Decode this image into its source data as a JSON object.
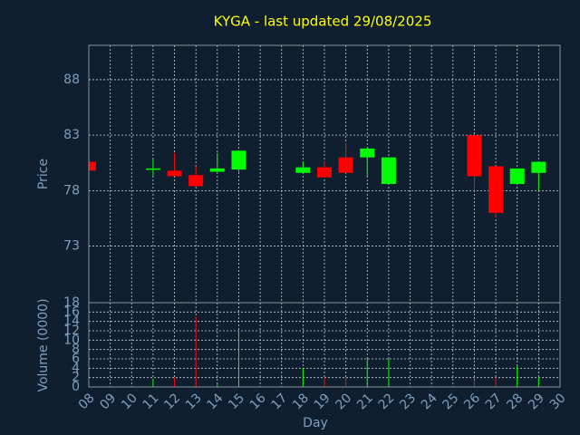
{
  "chart_data": {
    "type": "candlestick",
    "title": "KYGA - last updated 29/08/2025",
    "ylabel": "Price",
    "volume_ylabel": "Volume (0000)",
    "xlabel": "Day",
    "x": [
      8,
      11,
      12,
      13,
      14,
      15,
      18,
      19,
      20,
      21,
      22,
      26,
      27,
      28,
      29
    ],
    "open": [
      80.6,
      79.9,
      79.8,
      79.4,
      79.7,
      79.9,
      79.6,
      80.1,
      81.0,
      81.0,
      78.6,
      83.0,
      80.2,
      78.6,
      79.6
    ],
    "high": [
      80.6,
      80.8,
      81.4,
      80.2,
      81.4,
      81.6,
      80.6,
      80.6,
      82.3,
      81.8,
      81.0,
      83.0,
      80.2,
      80.0,
      80.6
    ],
    "low": [
      79.8,
      79.3,
      79.3,
      78.4,
      79.7,
      79.7,
      79.6,
      79.2,
      79.6,
      79.2,
      78.6,
      78.0,
      75.6,
      78.6,
      78.0
    ],
    "close": [
      79.8,
      80.0,
      79.3,
      78.4,
      80.0,
      81.6,
      80.1,
      79.2,
      79.6,
      81.8,
      81.0,
      79.3,
      76.0,
      80.0,
      80.6
    ],
    "volume": [
      0.2,
      1.5,
      2,
      15,
      0.5,
      12,
      4,
      2,
      2,
      6,
      6,
      1.5,
      2,
      4.5,
      2
    ],
    "up_color": "#00ff00",
    "down_color": "#ff0000",
    "xlim": [
      8,
      30
    ],
    "xticks": [
      {
        "value": 8,
        "label": "08"
      },
      {
        "value": 9,
        "label": "09"
      },
      10,
      11,
      12,
      13,
      14,
      15,
      16,
      17,
      18,
      19,
      20,
      21,
      22,
      23,
      24,
      25,
      26,
      27,
      28,
      29,
      30
    ],
    "ylim": [
      67.9,
      91.1
    ],
    "yticks": [
      73,
      78,
      83,
      88
    ],
    "volume_ylim": [
      0,
      18
    ],
    "volume_yticks": [
      0,
      2,
      4,
      6,
      8,
      10,
      12,
      14,
      16,
      18
    ],
    "grid": true
  }
}
